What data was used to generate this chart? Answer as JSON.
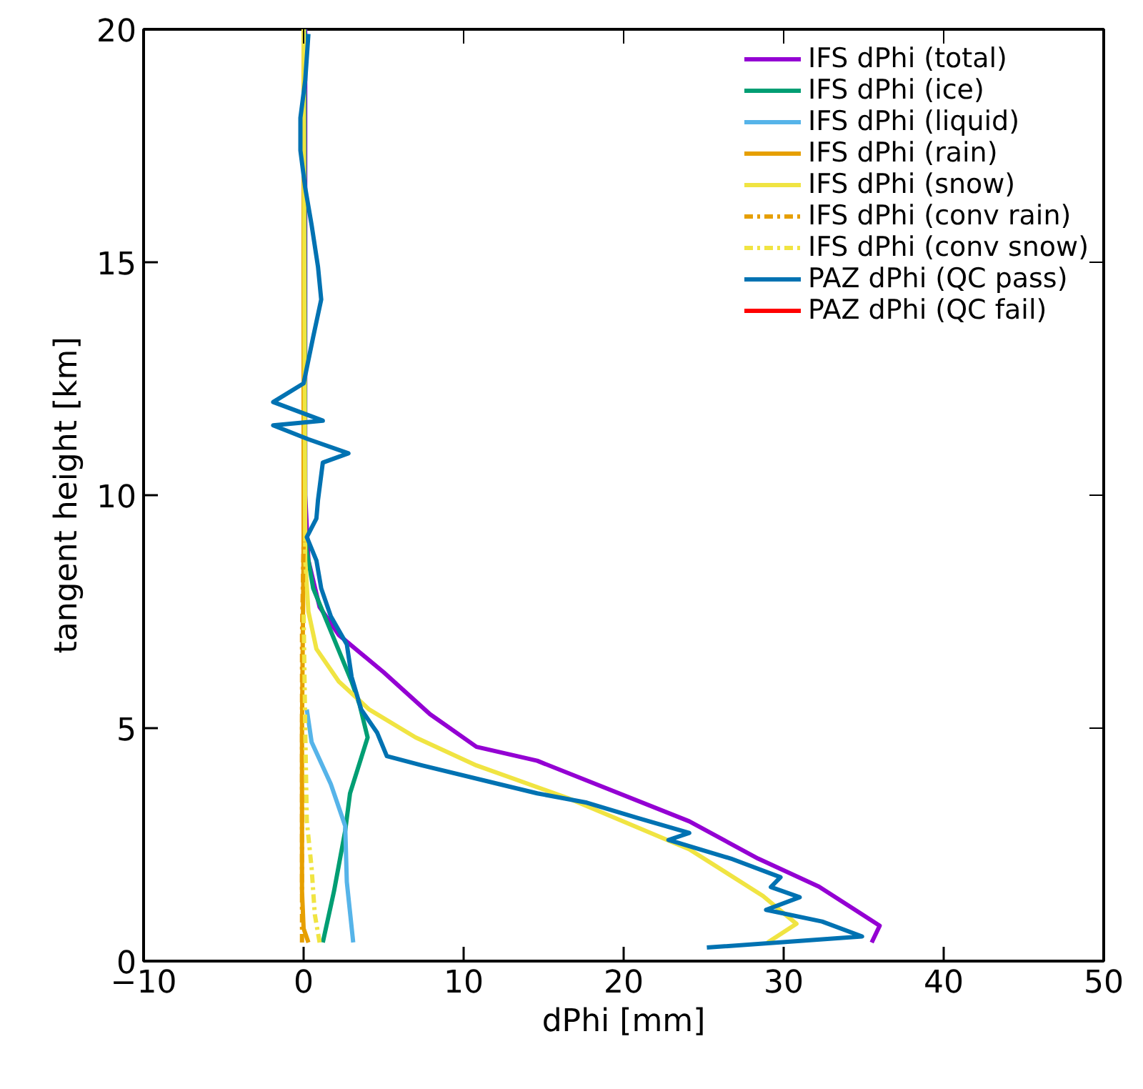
{
  "chart_data": {
    "type": "line",
    "xlabel": "dPhi [mm]",
    "ylabel": "tangent height [km]",
    "xlim": [
      -10,
      50
    ],
    "ylim": [
      0,
      20
    ],
    "xticks": [
      -10,
      0,
      10,
      20,
      30,
      40,
      50
    ],
    "yticks": [
      0,
      5,
      10,
      15,
      20
    ],
    "grid": false,
    "legend": "top right",
    "line_style": "solid",
    "series": [
      {
        "name": "IFS dPhi (total)",
        "color": "#9400d3",
        "x": [
          35.5,
          36,
          32.2,
          28.4,
          24.1,
          14.6,
          10.8,
          7.9,
          5.0,
          2.2,
          1.0,
          0.3,
          0.1,
          0.1
        ],
        "values": [
          0.4,
          0.76,
          1.6,
          2.2,
          3.0,
          4.3,
          4.6,
          5.3,
          6.2,
          7.0,
          7.6,
          8.6,
          10,
          20
        ]
      },
      {
        "name": "IFS dPhi (ice)",
        "color": "#009e73",
        "x": [
          1.2,
          1.9,
          2.6,
          2.9,
          4.0,
          3.5,
          3.0,
          1.8,
          0.6,
          0.1,
          0.05
        ],
        "values": [
          0.4,
          1.5,
          2.8,
          3.6,
          4.8,
          5.5,
          6.0,
          7.0,
          8.0,
          9.0,
          20
        ]
      },
      {
        "name": "IFS dPhi (liquid)",
        "color": "#56b4e9",
        "x": [
          3.1,
          2.7,
          2.6,
          1.7,
          0.5,
          0.2
        ],
        "values": [
          0.4,
          1.7,
          2.9,
          3.8,
          4.7,
          5.4
        ]
      },
      {
        "name": "IFS dPhi (rain)",
        "color": "#e69f00",
        "x": [
          0.3,
          0.0,
          -0.1,
          -0.1,
          0.0,
          0.0
        ],
        "values": [
          0.4,
          0.7,
          1.5,
          5,
          9,
          20
        ]
      },
      {
        "name": "IFS dPhi (snow)",
        "color": "#f0e442",
        "x": [
          29,
          30.8,
          28.7,
          24.1,
          16.5,
          10.8,
          7.0,
          4.1,
          2.2,
          0.8,
          0.3,
          0.1,
          0.0
        ],
        "values": [
          0.4,
          0.8,
          1.4,
          2.4,
          3.5,
          4.2,
          4.8,
          5.4,
          6.0,
          6.7,
          7.5,
          8.6,
          20
        ]
      },
      {
        "name": "IFS dPhi (conv rain)",
        "color": "#e69f00",
        "line_style": "dashed",
        "x": [
          -0.1,
          -0.1,
          -0.1,
          0.0
        ],
        "values": [
          0.4,
          3,
          7,
          9
        ]
      },
      {
        "name": "IFS dPhi (conv snow)",
        "color": "#f0e442",
        "line_style": "dashed",
        "x": [
          1.0,
          0.7,
          0.5,
          0.2,
          0.1,
          0.0
        ],
        "values": [
          0.4,
          1.0,
          2.0,
          3.0,
          5.0,
          7.5
        ]
      },
      {
        "name": "PAZ dPhi (QC pass)",
        "color": "#0072b2",
        "x": [
          25.2,
          34.9,
          32.4,
          28.9,
          31.0,
          29.2,
          29.8,
          26.7,
          22.8,
          24.1,
          20.9,
          17.7,
          14.6,
          12.2,
          7.4,
          5.2,
          4.6,
          3.6,
          3.0,
          2.7,
          1.7,
          1.1,
          0.8,
          0.2,
          0.8,
          0.9,
          1.2,
          2.8,
          0.3,
          -1.9,
          1.2,
          -1.9,
          0.0,
          0.6,
          1.1,
          0.9,
          0.5,
          0.1,
          -0.2,
          -0.2,
          0.1,
          0.3
        ],
        "values": [
          0.29,
          0.53,
          0.85,
          1.1,
          1.37,
          1.59,
          1.8,
          2.2,
          2.6,
          2.75,
          3.07,
          3.4,
          3.6,
          3.8,
          4.2,
          4.4,
          4.9,
          5.4,
          6.1,
          6.8,
          7.4,
          8.0,
          8.6,
          9.1,
          9.5,
          9.9,
          10.7,
          10.9,
          11.2,
          11.5,
          11.6,
          12.0,
          12.4,
          13.4,
          14.2,
          14.9,
          15.8,
          16.6,
          17.4,
          18.1,
          18.9,
          19.9
        ]
      },
      {
        "name": "PAZ dPhi (QC fail)",
        "color": "#ff0000",
        "x": [
          null,
          null
        ],
        "values": [
          null,
          null
        ]
      }
    ]
  }
}
